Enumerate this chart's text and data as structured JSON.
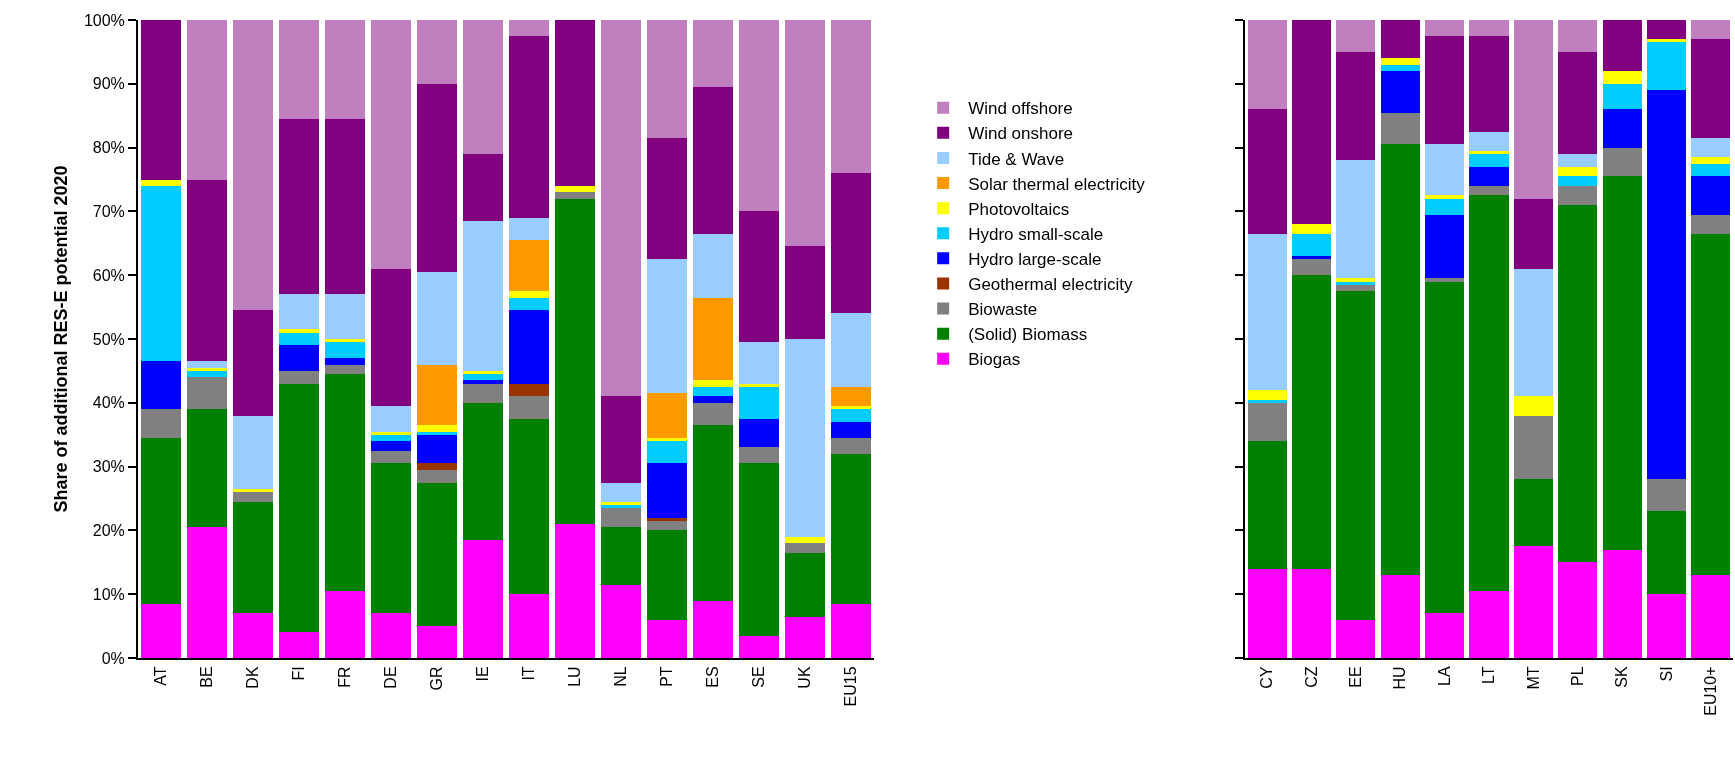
{
  "chart_data": [
    {
      "type": "bar",
      "stacked": true,
      "ylabel": "Share of additional RES-E potential 2020",
      "categories": [
        "AT",
        "BE",
        "DK",
        "FI",
        "FR",
        "DE",
        "GR",
        "IE",
        "IT",
        "LU",
        "NL",
        "PT",
        "ES",
        "SE",
        "UK",
        "EU15"
      ],
      "ylim": [
        0,
        100
      ],
      "yticks": [
        {
          "value": 0,
          "label": "0%"
        },
        {
          "value": 10,
          "label": "10%"
        },
        {
          "value": 20,
          "label": "20%"
        },
        {
          "value": 30,
          "label": "30%"
        },
        {
          "value": 40,
          "label": "40%"
        },
        {
          "value": 50,
          "label": "50%"
        },
        {
          "value": 60,
          "label": "60%"
        },
        {
          "value": 70,
          "label": "70%"
        },
        {
          "value": 80,
          "label": "80%"
        },
        {
          "value": 90,
          "label": "90%"
        },
        {
          "value": 100,
          "label": "100%"
        }
      ],
      "grid": false,
      "legend": "right",
      "series": [
        {
          "name": "Biogas",
          "color": "#ff00ff",
          "values": [
            8.5,
            20.5,
            7,
            4,
            10.5,
            7,
            5,
            18.5,
            10,
            21,
            11.5,
            6,
            9,
            3.5,
            6.5,
            8.5
          ]
        },
        {
          "name": "(Solid) Biomass",
          "color": "#008000",
          "values": [
            26,
            18.5,
            17.5,
            39,
            34,
            23.5,
            22.5,
            21.5,
            27.5,
            51,
            9,
            14,
            27.5,
            27,
            10,
            23.5
          ]
        },
        {
          "name": "Biowaste",
          "color": "#808080",
          "values": [
            4.5,
            5,
            1.5,
            2,
            1.5,
            2,
            2,
            3,
            3.5,
            1,
            3,
            1.5,
            3.5,
            2.5,
            1.5,
            2.5
          ]
        },
        {
          "name": "Geothermal electricity",
          "color": "#993300",
          "values": [
            0,
            0,
            0,
            0,
            0,
            0,
            1,
            0,
            2,
            0,
            0,
            0.5,
            0,
            0,
            0,
            0
          ]
        },
        {
          "name": "Hydro large-scale",
          "color": "#0000ff",
          "values": [
            7.5,
            0,
            0,
            4,
            1,
            1.5,
            4.5,
            0.5,
            11.5,
            0,
            0,
            8.5,
            1,
            4.5,
            0,
            2.5
          ]
        },
        {
          "name": "Hydro small-scale",
          "color": "#00ccff",
          "values": [
            27.5,
            1,
            0,
            2,
            2.5,
            1,
            0.5,
            1,
            2,
            0,
            0.5,
            3.5,
            1.5,
            5,
            0,
            2
          ]
        },
        {
          "name": "Photovoltaics",
          "color": "#ffff00",
          "values": [
            1,
            0.5,
            0.5,
            0.5,
            0.5,
            0.5,
            1,
            0.5,
            1,
            1,
            0.5,
            0.5,
            1,
            0.5,
            1,
            0.5
          ]
        },
        {
          "name": "Solar thermal electricity",
          "color": "#ff9900",
          "values": [
            0,
            0,
            0,
            0,
            0,
            0,
            9.5,
            0,
            8,
            0,
            0,
            7,
            13,
            0,
            0,
            3
          ]
        },
        {
          "name": "Tide & Wave",
          "color": "#99ccff",
          "values": [
            0,
            1,
            11.5,
            5.5,
            7,
            4,
            14.5,
            23.5,
            3.5,
            0,
            3,
            21,
            10,
            6.5,
            31,
            11.5
          ]
        },
        {
          "name": "Wind onshore",
          "color": "#800080",
          "values": [
            25,
            28.5,
            16.5,
            27.5,
            27.5,
            21.5,
            29.5,
            10.5,
            28.5,
            26,
            13.5,
            19,
            23,
            20.5,
            14.5,
            22
          ]
        },
        {
          "name": "Wind offshore",
          "color": "#c080c0",
          "values": [
            0,
            25,
            45.5,
            15.5,
            15.5,
            39,
            10,
            21,
            2.5,
            0,
            59,
            18.5,
            10.5,
            30,
            35.5,
            24
          ]
        }
      ]
    },
    {
      "type": "bar",
      "stacked": true,
      "categories": [
        "CY",
        "CZ",
        "EE",
        "HU",
        "LA",
        "LT",
        "MT",
        "PL",
        "SK",
        "SI",
        "EU10+"
      ],
      "ylim": [
        0,
        100
      ],
      "yticks": [
        {
          "value": 0,
          "label": null
        },
        {
          "value": 10,
          "label": null
        },
        {
          "value": 20,
          "label": null
        },
        {
          "value": 30,
          "label": null
        },
        {
          "value": 40,
          "label": null
        },
        {
          "value": 50,
          "label": null
        },
        {
          "value": 60,
          "label": null
        },
        {
          "value": 70,
          "label": null
        },
        {
          "value": 80,
          "label": null
        },
        {
          "value": 90,
          "label": null
        },
        {
          "value": 100,
          "label": null
        }
      ],
      "tick_labels": "x",
      "grid": false,
      "legend": false,
      "series": [
        {
          "color": "#ff00ff",
          "values": [
            14,
            14,
            6,
            13,
            7,
            10.5,
            17.5,
            15,
            17,
            10,
            13
          ]
        },
        {
          "color": "#008000",
          "values": [
            20,
            46,
            51.5,
            67.5,
            52,
            62,
            10.5,
            56,
            58.5,
            13,
            53.5
          ]
        },
        {
          "color": "#808080",
          "values": [
            6,
            2.5,
            1,
            5,
            0.5,
            1.5,
            10,
            3,
            4.5,
            5,
            3
          ]
        },
        {
          "color": "#993300",
          "values": [
            0,
            0,
            0,
            0,
            0,
            0,
            0,
            0,
            0,
            0,
            0
          ]
        },
        {
          "color": "#0000ff",
          "values": [
            0,
            0.5,
            0,
            6.5,
            10,
            3,
            0,
            0,
            6,
            61,
            6
          ]
        },
        {
          "color": "#00ccff",
          "values": [
            0.5,
            3.5,
            0.5,
            1,
            2.5,
            2,
            0,
            1.5,
            4,
            7.5,
            2
          ]
        },
        {
          "color": "#ffff00",
          "values": [
            1.5,
            1.5,
            0.5,
            1,
            0.5,
            0.5,
            3,
            1.5,
            2,
            0.5,
            1
          ]
        },
        {
          "color": "#ff9900",
          "values": [
            0,
            0,
            0,
            0,
            0,
            0,
            0,
            0,
            0,
            0,
            0
          ]
        },
        {
          "color": "#99ccff",
          "values": [
            24.5,
            0,
            18.5,
            0,
            8,
            3,
            20,
            2,
            0,
            0,
            3
          ]
        },
        {
          "color": "#800080",
          "values": [
            19.5,
            32,
            17,
            6,
            17,
            15,
            11,
            16,
            8,
            3,
            15.5
          ]
        },
        {
          "color": "#c080c0",
          "values": [
            14,
            0,
            5,
            0,
            2.5,
            2.5,
            28,
            5,
            0,
            0,
            3
          ]
        }
      ]
    }
  ]
}
